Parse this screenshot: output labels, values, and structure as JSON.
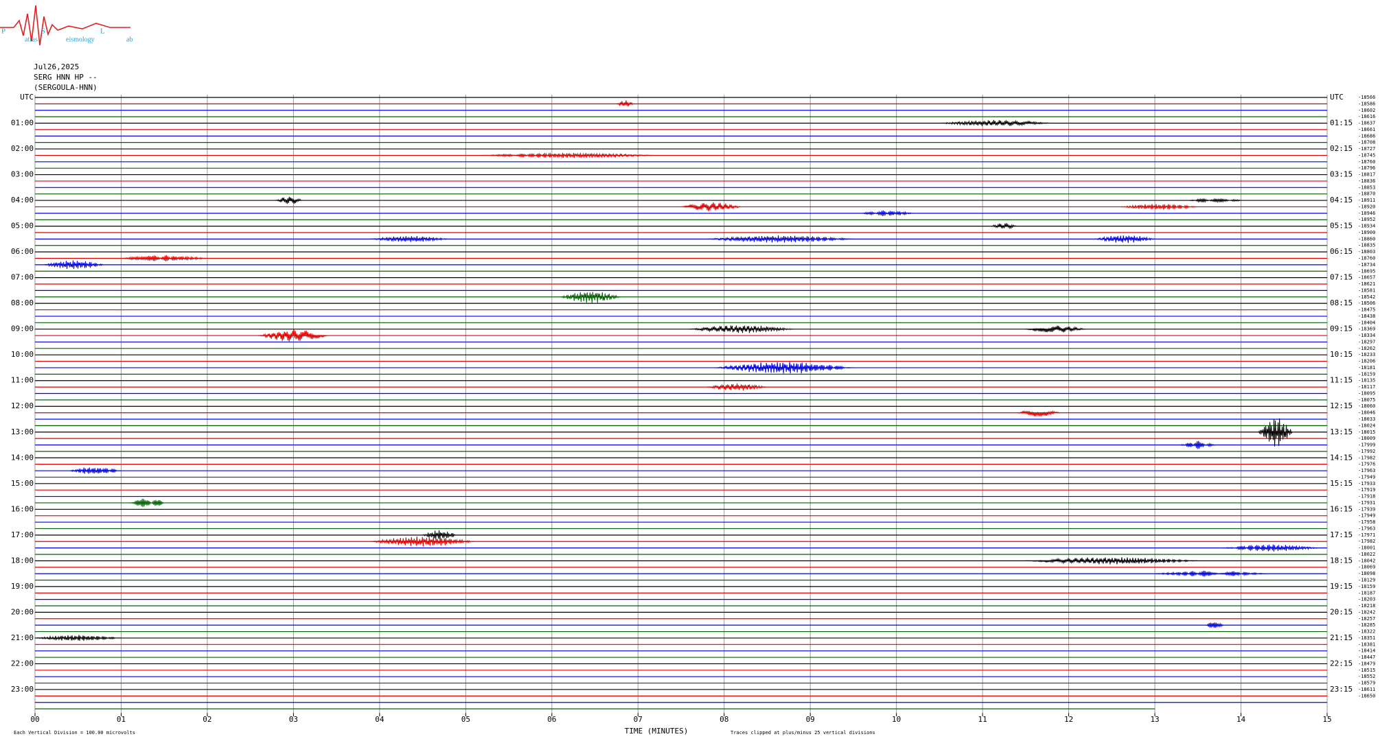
{
  "chart_data": {
    "type": "helicorder",
    "logo": {
      "p": "P",
      "p_small": "atras",
      "s": "S",
      "s_small": "eismology",
      "l": "L",
      "l_small": "ab"
    },
    "date": "Jul26,2025",
    "station": "SERG HNN HP --",
    "site": "(SERGOULA-HNN)",
    "left_labels": [
      "UTC",
      "01:00",
      "02:00",
      "03:00",
      "04:00",
      "05:00",
      "06:00",
      "07:00",
      "08:00",
      "09:00",
      "10:00",
      "11:00",
      "12:00",
      "13:00",
      "14:00",
      "15:00",
      "16:00",
      "17:00",
      "18:00",
      "19:00",
      "20:00",
      "21:00",
      "22:00",
      "23:00"
    ],
    "right_labels": [
      "UTC",
      "01:15",
      "02:15",
      "03:15",
      "04:15",
      "05:15",
      "06:15",
      "07:15",
      "08:15",
      "09:15",
      "10:15",
      "11:15",
      "12:15",
      "13:15",
      "14:15",
      "15:15",
      "16:15",
      "17:15",
      "18:15",
      "19:15",
      "20:15",
      "21:15",
      "22:15",
      "23:15"
    ],
    "trace_colors": [
      "#000000",
      "#e00000",
      "#0000e0",
      "#006000"
    ],
    "rows": 96,
    "last_trace_end": 13,
    "row_offsets": [
      -18566,
      -18586,
      -18602,
      -18616,
      -18637,
      -18661,
      -18686,
      -18708,
      -18727,
      -18745,
      -18760,
      -18796,
      -18817,
      -18836,
      -18853,
      -18870,
      -18911,
      -18920,
      -18946,
      -18952,
      -18934,
      -18900,
      -18860,
      -18835,
      -18803,
      -18760,
      -18734,
      -18695,
      -18657,
      -18621,
      -18581,
      -18542,
      -18506,
      -18475,
      -18438,
      -18404,
      -18369,
      -18334,
      -18297,
      -18262,
      -18233,
      -18206,
      -18181,
      -18159,
      -18135,
      -18117,
      -18095,
      -18075,
      -18060,
      -18046,
      -18033,
      -18024,
      -18015,
      -18009,
      -17999,
      -17992,
      -17982,
      -17976,
      -17963,
      -17949,
      -17933,
      -17919,
      -17918,
      -17931,
      -17939,
      -17949,
      -17958,
      -17963,
      -17971,
      -17982,
      -18001,
      -18022,
      -18042,
      -18069,
      -18098,
      -18129,
      -18159,
      -18187,
      -18203,
      -18218,
      -18242,
      -18257,
      -18285,
      -18322,
      -18351,
      -18381,
      -18414,
      -18447,
      -18479,
      -18515,
      -18552,
      -18579,
      -18611,
      -18650
    ],
    "events": [
      {
        "row": 1,
        "start": 6.75,
        "end": 6.95,
        "amplitude": 0.35
      },
      {
        "row": 4,
        "start": 10.5,
        "end": 11.8,
        "amplitude": 0.3
      },
      {
        "row": 9,
        "start": 5.2,
        "end": 7.2,
        "amplitude": 0.25
      },
      {
        "row": 16,
        "start": 2.8,
        "end": 3.1,
        "amplitude": 0.4
      },
      {
        "row": 16,
        "start": 13.4,
        "end": 14.0,
        "amplitude": 0.3
      },
      {
        "row": 17,
        "start": 7.5,
        "end": 8.2,
        "amplitude": 0.45
      },
      {
        "row": 17,
        "start": 12.6,
        "end": 13.5,
        "amplitude": 0.3
      },
      {
        "row": 18,
        "start": 9.6,
        "end": 10.2,
        "amplitude": 0.3
      },
      {
        "row": 20,
        "start": 11.1,
        "end": 11.4,
        "amplitude": 0.3
      },
      {
        "row": 22,
        "start": 3.9,
        "end": 4.8,
        "amplitude": 0.3
      },
      {
        "row": 22,
        "start": 7.8,
        "end": 9.5,
        "amplitude": 0.35
      },
      {
        "row": 22,
        "start": 12.3,
        "end": 13.0,
        "amplitude": 0.4
      },
      {
        "row": 25,
        "start": 1.0,
        "end": 2.0,
        "amplitude": 0.3
      },
      {
        "row": 26,
        "start": 0.1,
        "end": 0.8,
        "amplitude": 0.45
      },
      {
        "row": 31,
        "start": 6.1,
        "end": 6.8,
        "amplitude": 0.6
      },
      {
        "row": 36,
        "start": 7.6,
        "end": 8.8,
        "amplitude": 0.4
      },
      {
        "row": 36,
        "start": 11.5,
        "end": 12.2,
        "amplitude": 0.35
      },
      {
        "row": 37,
        "start": 2.6,
        "end": 3.4,
        "amplitude": 0.6
      },
      {
        "row": 42,
        "start": 7.9,
        "end": 9.5,
        "amplitude": 0.6
      },
      {
        "row": 45,
        "start": 7.8,
        "end": 8.5,
        "amplitude": 0.35
      },
      {
        "row": 49,
        "start": 11.4,
        "end": 11.9,
        "amplitude": 0.35
      },
      {
        "row": 52,
        "start": 14.2,
        "end": 14.6,
        "amplitude": 1.5
      },
      {
        "row": 54,
        "start": 13.3,
        "end": 13.7,
        "amplitude": 0.4
      },
      {
        "row": 58,
        "start": 0.4,
        "end": 1.0,
        "amplitude": 0.4
      },
      {
        "row": 63,
        "start": 1.1,
        "end": 1.5,
        "amplitude": 0.7
      },
      {
        "row": 68,
        "start": 4.5,
        "end": 4.9,
        "amplitude": 0.5
      },
      {
        "row": 69,
        "start": 3.9,
        "end": 5.1,
        "amplitude": 0.5
      },
      {
        "row": 70,
        "start": 13.8,
        "end": 14.9,
        "amplitude": 0.35
      },
      {
        "row": 72,
        "start": 11.5,
        "end": 13.5,
        "amplitude": 0.35
      },
      {
        "row": 74,
        "start": 13.0,
        "end": 14.3,
        "amplitude": 0.3
      },
      {
        "row": 82,
        "start": 13.6,
        "end": 13.8,
        "amplitude": 0.45
      },
      {
        "row": 84,
        "start": 0.0,
        "end": 1.0,
        "amplitude": 0.3
      }
    ],
    "xlim": [
      0,
      15
    ],
    "xticks": [
      {
        "value": 0,
        "label": "00"
      },
      {
        "value": 1,
        "label": "01"
      },
      {
        "value": 2,
        "label": "02"
      },
      {
        "value": 3,
        "label": "03"
      },
      {
        "value": 4,
        "label": "04"
      },
      {
        "value": 5,
        "label": "05"
      },
      {
        "value": 6,
        "label": "06"
      },
      {
        "value": 7,
        "label": "07"
      },
      {
        "value": 8,
        "label": "08"
      },
      {
        "value": 9,
        "label": "09"
      },
      10,
      11,
      12,
      13,
      14,
      15
    ],
    "xlabel": "TIME (MINUTES)",
    "scale_note": "Each Vertical Division =  100.00 microvolts",
    "clip_note": "Traces clipped at plus/minus 25 vertical divisions",
    "grid": true
  }
}
